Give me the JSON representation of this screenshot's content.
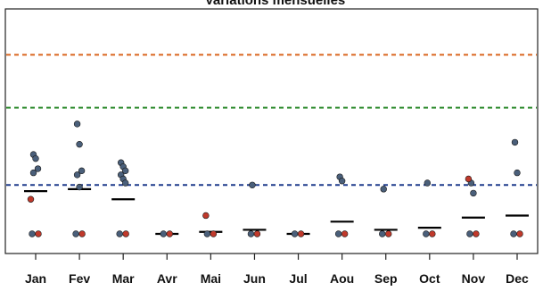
{
  "chart_data": {
    "type": "scatter",
    "title": "Variations mensuelles",
    "xlabel": "",
    "ylabel": "",
    "categories": [
      "Jan",
      "Fev",
      "Mar",
      "Avr",
      "Mai",
      "Jun",
      "Jul",
      "Aou",
      "Sep",
      "Oct",
      "Nov",
      "Dec"
    ],
    "ylim": [
      0,
      100
    ],
    "grid": false,
    "legend": "none",
    "reference_lines": [
      {
        "value": 88,
        "color": "#d9661f",
        "style": "dashed"
      },
      {
        "value": 62,
        "color": "#2e8b2e",
        "style": "dashed"
      },
      {
        "value": 24,
        "color": "#1f3b8c",
        "style": "dashed"
      }
    ],
    "medians": [
      21,
      22,
      17,
      0,
      1,
      2,
      0,
      6,
      2,
      3,
      8,
      9
    ],
    "series": [
      {
        "marker_color": "#4a5f7a",
        "points": [
          {
            "x": "Jan",
            "y": [
              39,
              37,
              32,
              30,
              0
            ]
          },
          {
            "x": "Fev",
            "y": [
              54,
              44,
              31,
              29,
              23,
              0
            ]
          },
          {
            "x": "Mar",
            "y": [
              35,
              33,
              31,
              29,
              27,
              25,
              0
            ]
          },
          {
            "x": "Avr",
            "y": [
              0
            ]
          },
          {
            "x": "Mai",
            "y": [
              0
            ]
          },
          {
            "x": "Jun",
            "y": [
              24,
              0
            ]
          },
          {
            "x": "Jul",
            "y": [
              0
            ]
          },
          {
            "x": "Aou",
            "y": [
              28,
              26,
              0
            ]
          },
          {
            "x": "Sep",
            "y": [
              22,
              0
            ]
          },
          {
            "x": "Oct",
            "y": [
              25,
              0
            ]
          },
          {
            "x": "Nov",
            "y": [
              25,
              20,
              0
            ]
          },
          {
            "x": "Dec",
            "y": [
              45,
              30,
              0
            ]
          }
        ]
      },
      {
        "marker_color": "#c0392b",
        "points": [
          {
            "x": "Jan",
            "y": [
              17,
              0
            ]
          },
          {
            "x": "Fev",
            "y": [
              0
            ]
          },
          {
            "x": "Mar",
            "y": [
              0
            ]
          },
          {
            "x": "Avr",
            "y": [
              0
            ]
          },
          {
            "x": "Mai",
            "y": [
              9,
              0
            ]
          },
          {
            "x": "Jun",
            "y": [
              0
            ]
          },
          {
            "x": "Jul",
            "y": [
              0
            ]
          },
          {
            "x": "Aou",
            "y": [
              0
            ]
          },
          {
            "x": "Sep",
            "y": [
              0
            ]
          },
          {
            "x": "Oct",
            "y": [
              0
            ]
          },
          {
            "x": "Nov",
            "y": [
              27,
              0
            ]
          },
          {
            "x": "Dec",
            "y": [
              0
            ]
          }
        ]
      }
    ]
  },
  "colors": {
    "background": "#ffffff",
    "axis": "#222222",
    "median": "#000000"
  }
}
